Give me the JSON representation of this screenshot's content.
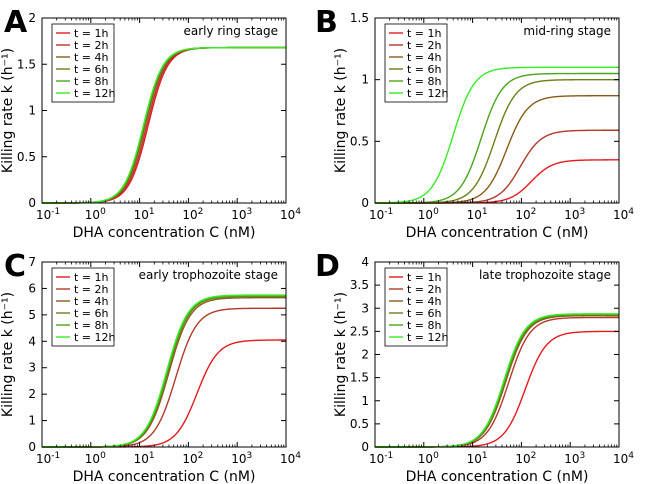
{
  "chart_data": [
    {
      "type": "line",
      "panel": "A",
      "title": "early ring stage",
      "xlabel": "DHA concentration C (nM)",
      "ylabel": "Killing rate k (h⁻¹)",
      "xscale": "log",
      "xlim": [
        0.1,
        10000
      ],
      "ylim": [
        0,
        2
      ],
      "yticks": [
        0,
        0.5,
        1,
        1.5,
        2
      ],
      "ytick_labels": [
        "0",
        "0.5",
        "1",
        "1.5",
        "2"
      ],
      "legend_position": "top-left",
      "series": [
        {
          "name": "t = 1h",
          "color": "#e8191e",
          "kmax": 1.68,
          "ec50": 15,
          "hill": 2.2
        },
        {
          "name": "t = 2h",
          "color": "#b03a2a",
          "kmax": 1.68,
          "ec50": 14,
          "hill": 2.2
        },
        {
          "name": "t = 4h",
          "color": "#8a5a1a",
          "kmax": 1.68,
          "ec50": 13,
          "hill": 2.2
        },
        {
          "name": "t = 6h",
          "color": "#6f7d1a",
          "kmax": 1.68,
          "ec50": 12.5,
          "hill": 2.2
        },
        {
          "name": "t = 8h",
          "color": "#4aa51c",
          "kmax": 1.68,
          "ec50": 12.2,
          "hill": 2.2
        },
        {
          "name": "t = 12h",
          "color": "#33ee22",
          "kmax": 1.68,
          "ec50": 12,
          "hill": 2.2
        }
      ]
    },
    {
      "type": "line",
      "panel": "B",
      "title": "mid-ring stage",
      "xlabel": "DHA concentration C (nM)",
      "ylabel": "Killing rate k (h⁻¹)",
      "xscale": "log",
      "xlim": [
        0.1,
        10000
      ],
      "ylim": [
        0,
        1.5
      ],
      "yticks": [
        0,
        0.5,
        1,
        1.5
      ],
      "ytick_labels": [
        "0",
        "0.5",
        "1",
        "1.5"
      ],
      "legend_position": "top-left",
      "series": [
        {
          "name": "t = 1h",
          "color": "#e8191e",
          "kmax": 0.35,
          "ec50": 160,
          "hill": 2.0
        },
        {
          "name": "t = 2h",
          "color": "#b03a2a",
          "kmax": 0.59,
          "ec50": 95,
          "hill": 2.0
        },
        {
          "name": "t = 4h",
          "color": "#8a5a1a",
          "kmax": 0.87,
          "ec50": 50,
          "hill": 2.0
        },
        {
          "name": "t = 6h",
          "color": "#6f7d1a",
          "kmax": 1.0,
          "ec50": 28,
          "hill": 2.0
        },
        {
          "name": "t = 8h",
          "color": "#4aa51c",
          "kmax": 1.05,
          "ec50": 15,
          "hill": 2.0
        },
        {
          "name": "t = 12h",
          "color": "#33ee22",
          "kmax": 1.1,
          "ec50": 4,
          "hill": 2.0
        }
      ]
    },
    {
      "type": "line",
      "panel": "C",
      "title": "early trophozoite stage",
      "xlabel": "DHA concentration C (nM)",
      "ylabel": "Killing rate k (h⁻¹)",
      "xscale": "log",
      "xlim": [
        0.1,
        10000
      ],
      "ylim": [
        0,
        7
      ],
      "yticks": [
        0,
        1,
        2,
        3,
        4,
        5,
        6,
        7
      ],
      "ytick_labels": [
        "0",
        "1",
        "2",
        "3",
        "4",
        "5",
        "6",
        "7"
      ],
      "legend_position": "top-left",
      "series": [
        {
          "name": "t = 1h",
          "color": "#e8191e",
          "kmax": 4.05,
          "ec50": 150,
          "hill": 2.0
        },
        {
          "name": "t = 2h",
          "color": "#b03a2a",
          "kmax": 5.25,
          "ec50": 55,
          "hill": 2.0
        },
        {
          "name": "t = 4h",
          "color": "#8a5a1a",
          "kmax": 5.65,
          "ec50": 40,
          "hill": 2.0
        },
        {
          "name": "t = 6h",
          "color": "#6f7d1a",
          "kmax": 5.7,
          "ec50": 38,
          "hill": 2.0
        },
        {
          "name": "t = 8h",
          "color": "#4aa51c",
          "kmax": 5.72,
          "ec50": 37,
          "hill": 2.0
        },
        {
          "name": "t = 12h",
          "color": "#33ee22",
          "kmax": 5.75,
          "ec50": 36,
          "hill": 2.0
        }
      ]
    },
    {
      "type": "line",
      "panel": "D",
      "title": "late trophozoite stage",
      "xlabel": "DHA concentration C (nM)",
      "ylabel": "Killing rate k (h⁻¹)",
      "xscale": "log",
      "xlim": [
        0.1,
        10000
      ],
      "ylim": [
        0,
        4
      ],
      "yticks": [
        0,
        0.5,
        1,
        1.5,
        2,
        2.5,
        3,
        3.5,
        4
      ],
      "ytick_labels": [
        "0",
        "0.5",
        "1",
        "1.5",
        "2",
        "2.5",
        "3",
        "3.5",
        "4"
      ],
      "legend_position": "top-left",
      "series": [
        {
          "name": "t = 1h",
          "color": "#e8191e",
          "kmax": 2.5,
          "ec50": 120,
          "hill": 2.0
        },
        {
          "name": "t = 2h",
          "color": "#b03a2a",
          "kmax": 2.8,
          "ec50": 55,
          "hill": 2.0
        },
        {
          "name": "t = 4h",
          "color": "#8a5a1a",
          "kmax": 2.84,
          "ec50": 48,
          "hill": 2.0
        },
        {
          "name": "t = 6h",
          "color": "#6f7d1a",
          "kmax": 2.86,
          "ec50": 46,
          "hill": 2.0
        },
        {
          "name": "t = 8h",
          "color": "#4aa51c",
          "kmax": 2.87,
          "ec50": 45,
          "hill": 2.0
        },
        {
          "name": "t = 12h",
          "color": "#33ee22",
          "kmax": 2.88,
          "ec50": 44,
          "hill": 2.0
        }
      ]
    }
  ]
}
